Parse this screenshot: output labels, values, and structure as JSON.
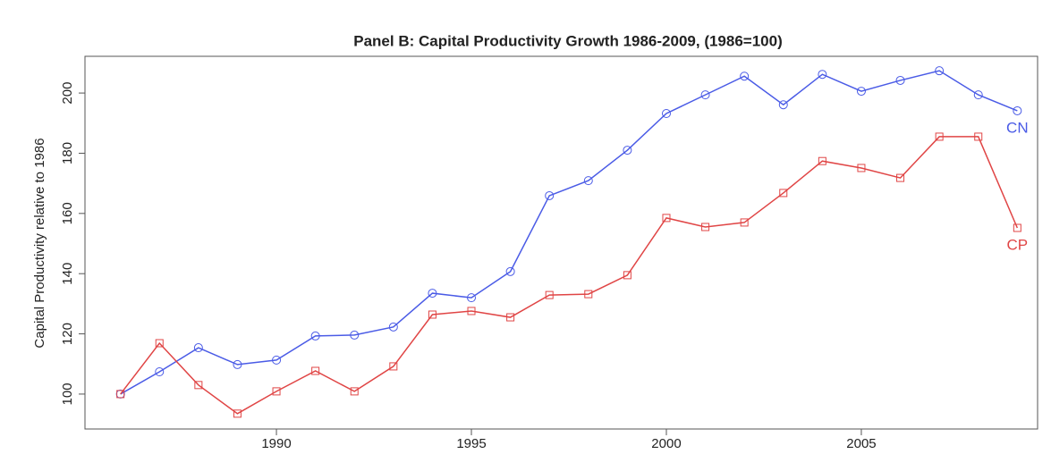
{
  "chart_data": {
    "type": "line",
    "title": "Panel B: Capital Productivity Growth 1986-2009, (1986=100)",
    "y_label": "Capital Productivity relative to 1986",
    "x": [
      1986,
      1987,
      1988,
      1989,
      1990,
      1991,
      1992,
      1993,
      1994,
      1995,
      1996,
      1997,
      1998,
      1999,
      2000,
      2001,
      2002,
      2003,
      2004,
      2005,
      2006,
      2007,
      2008,
      2009
    ],
    "series": [
      {
        "name": "CN",
        "color": "#4a5be6",
        "marker": "circle",
        "values": [
          100,
          107.4,
          115.4,
          109.8,
          111.3,
          119.3,
          119.6,
          122.3,
          133.5,
          132.0,
          140.7,
          165.9,
          170.9,
          181.0,
          193.2,
          199.4,
          205.6,
          196.1,
          206.2,
          200.6,
          204.2,
          207.4,
          199.4,
          194.1
        ]
      },
      {
        "name": "CP",
        "color": "#e04545",
        "marker": "square",
        "values": [
          100,
          116.9,
          103.0,
          93.5,
          100.9,
          107.7,
          100.9,
          109.2,
          126.4,
          127.6,
          125.5,
          132.9,
          133.2,
          139.5,
          158.5,
          155.5,
          157.0,
          166.8,
          177.4,
          175.1,
          171.8,
          185.5,
          185.5,
          155.2
        ]
      }
    ],
    "xlim": [
      1985.09,
      2009.52
    ],
    "xticks": [
      1990,
      1995,
      2000,
      2005
    ],
    "ylim": [
      88.4,
      212.2
    ],
    "yticks": [
      100,
      120,
      140,
      160,
      180,
      200
    ],
    "grid": false
  }
}
